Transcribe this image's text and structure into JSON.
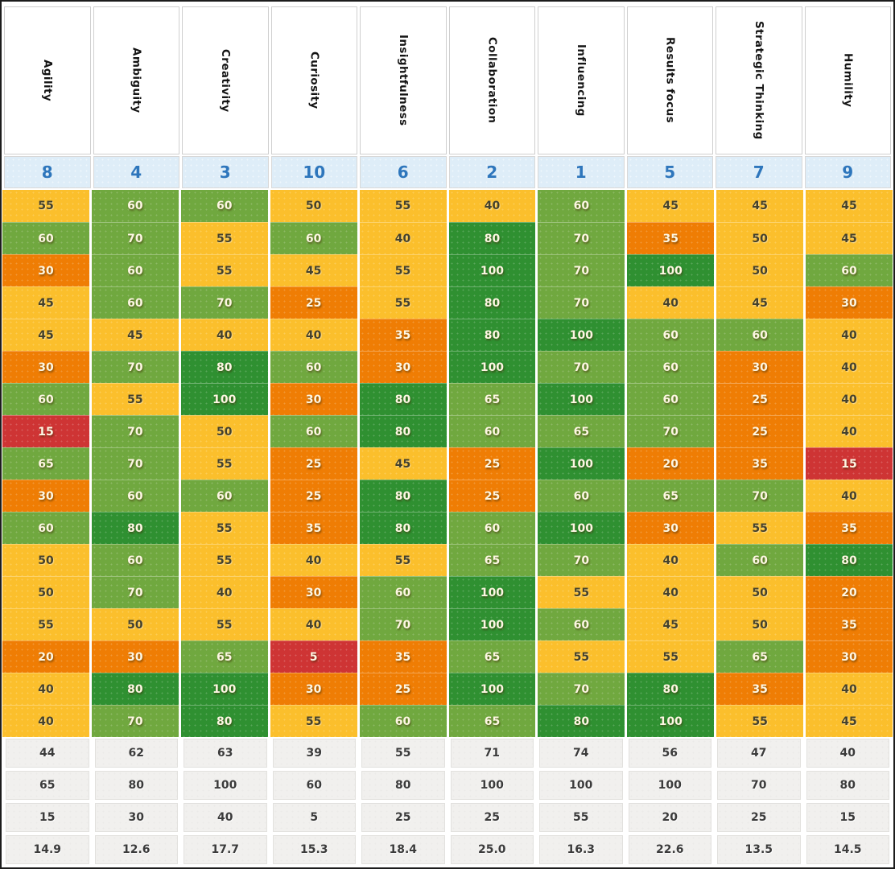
{
  "chart_data": {
    "type": "heatmap",
    "title": "",
    "columns": [
      "Agility",
      "Ambiguity",
      "Creativity",
      "Curiosity",
      "Insightfulness",
      "Collaboration",
      "Influencing",
      "Results focus",
      "Strategic Thinking",
      "Humility"
    ],
    "rank_row": [
      "8",
      "4",
      "3",
      "10",
      "6",
      "2",
      "1",
      "5",
      "7",
      "9"
    ],
    "rows": [
      [
        55,
        60,
        60,
        50,
        55,
        40,
        60,
        45,
        45,
        45
      ],
      [
        60,
        70,
        55,
        60,
        40,
        80,
        70,
        35,
        50,
        45
      ],
      [
        30,
        60,
        55,
        45,
        55,
        100,
        70,
        100,
        50,
        60
      ],
      [
        45,
        60,
        70,
        25,
        55,
        80,
        70,
        40,
        45,
        30
      ],
      [
        45,
        45,
        40,
        40,
        35,
        80,
        100,
        60,
        60,
        40
      ],
      [
        30,
        70,
        80,
        60,
        30,
        100,
        70,
        60,
        30,
        40
      ],
      [
        60,
        55,
        100,
        30,
        80,
        65,
        100,
        60,
        25,
        40
      ],
      [
        15,
        70,
        50,
        60,
        80,
        60,
        65,
        70,
        25,
        40
      ],
      [
        65,
        70,
        55,
        25,
        45,
        25,
        100,
        20,
        35,
        15
      ],
      [
        30,
        60,
        60,
        25,
        80,
        25,
        60,
        65,
        70,
        40
      ],
      [
        60,
        80,
        55,
        35,
        80,
        60,
        100,
        30,
        55,
        35
      ],
      [
        50,
        60,
        55,
        40,
        55,
        65,
        70,
        40,
        60,
        80
      ],
      [
        50,
        70,
        40,
        30,
        60,
        100,
        55,
        40,
        50,
        20
      ],
      [
        55,
        50,
        55,
        40,
        70,
        100,
        60,
        45,
        50,
        35
      ],
      [
        20,
        30,
        65,
        5,
        35,
        65,
        55,
        55,
        65,
        30
      ],
      [
        40,
        80,
        100,
        30,
        25,
        100,
        70,
        80,
        35,
        40
      ],
      [
        40,
        70,
        80,
        55,
        60,
        65,
        80,
        100,
        55,
        45
      ]
    ],
    "summary_rows": [
      [
        "44",
        "62",
        "63",
        "39",
        "55",
        "71",
        "74",
        "56",
        "47",
        "40"
      ],
      [
        "65",
        "80",
        "100",
        "60",
        "80",
        "100",
        "100",
        "100",
        "70",
        "80"
      ],
      [
        "15",
        "30",
        "40",
        "5",
        "25",
        "25",
        "55",
        "20",
        "25",
        "15"
      ],
      [
        "14.9",
        "12.6",
        "17.7",
        "15.3",
        "18.4",
        "25.0",
        "16.3",
        "22.6",
        "13.5",
        "14.5"
      ]
    ],
    "color_scale": [
      {
        "max": 19,
        "color": "#ce3434",
        "text_class": "light-text",
        "meaning": "red"
      },
      {
        "max": 39,
        "color": "#ef7d04",
        "text_class": "light-text",
        "meaning": "orange"
      },
      {
        "max": 59,
        "color": "#fbbf2c",
        "text_class": "dark-text",
        "meaning": "yellow"
      },
      {
        "max": 79,
        "color": "#70a83f",
        "text_class": "light-text",
        "meaning": "green"
      },
      {
        "max": 100,
        "color": "#2f9031",
        "text_class": "light-text",
        "meaning": "dark-green"
      }
    ],
    "colors": {
      "rank_row_bg": "#deedf8",
      "rank_text": "#2e76bc",
      "summary_bg": "#f1f0ee",
      "summary_text": "#3b3b3b",
      "header_text": "#141414",
      "frame_border": "#1c1c1c",
      "column_gap": "#ffffff"
    },
    "layout_hints": {
      "header_rotated": true,
      "grid": "white column gaps, faint row lines",
      "legend": "none"
    }
  }
}
